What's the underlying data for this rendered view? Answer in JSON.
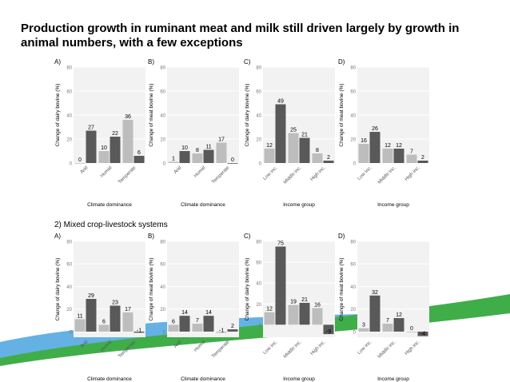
{
  "slide": {
    "title": "Production growth in ruminant meat and milk still driven largely by growth in animal numbers, with a few exceptions",
    "section_label": "2) Mixed crop-livestock systems"
  },
  "colors": {
    "light_bar": "#bdbdbd",
    "dark_bar": "#595959",
    "panel_bg": "#f2f2f2",
    "grid": "#ffffff",
    "deco_blue": "#4aa3df",
    "deco_green": "#3fae49"
  },
  "chart_data": [
    {
      "type": "bar",
      "panel": "A)",
      "row": 1,
      "ylabel": "Change of dairy bovine (%)",
      "xlabel": "Climate dominance",
      "ylim": [
        0,
        80
      ],
      "yticks": [
        0,
        20,
        40,
        60,
        80
      ],
      "categories": [
        "Arid",
        "Humid",
        "Temperate"
      ],
      "series": [
        {
          "values": [
            0,
            10,
            36
          ]
        },
        {
          "values": [
            27,
            22,
            6
          ]
        }
      ]
    },
    {
      "type": "bar",
      "panel": "B)",
      "row": 1,
      "ylabel": "Change of meat bovine (%)",
      "xlabel": "Climate dominance",
      "ylim": [
        0,
        80
      ],
      "yticks": [
        0,
        20,
        40,
        60,
        80
      ],
      "categories": [
        "Arid",
        "Humid",
        "Temperate"
      ],
      "series": [
        {
          "values": [
            1,
            8,
            17
          ]
        },
        {
          "values": [
            10,
            11,
            0
          ]
        }
      ]
    },
    {
      "type": "bar",
      "panel": "C)",
      "row": 1,
      "ylabel": "Change of dairy bovine (%)",
      "xlabel": "Income group",
      "ylim": [
        0,
        80
      ],
      "yticks": [
        0,
        20,
        40,
        60,
        80
      ],
      "categories": [
        "Low inc.",
        "Middle inc.",
        "High inc."
      ],
      "series": [
        {
          "values": [
            12,
            25,
            8
          ]
        },
        {
          "values": [
            49,
            21,
            2
          ]
        }
      ]
    },
    {
      "type": "bar",
      "panel": "D)",
      "row": 1,
      "ylabel": "Change of meat bovine (%)",
      "xlabel": "Income group",
      "ylim": [
        0,
        80
      ],
      "yticks": [
        0,
        20,
        40,
        60,
        80
      ],
      "categories": [
        "Low inc.",
        "Middle inc.",
        "High inc."
      ],
      "series": [
        {
          "values": [
            16,
            12,
            7
          ]
        },
        {
          "values": [
            26,
            12,
            2
          ]
        }
      ]
    },
    {
      "type": "bar",
      "panel": "A)",
      "row": 2,
      "ylabel": "Change of dairy bovine (%)",
      "xlabel": "Climate dominance",
      "ylim": [
        -5,
        80
      ],
      "yticks": [
        0,
        20,
        40,
        60,
        80
      ],
      "categories": [
        "Arid",
        "Humid",
        "Temperate"
      ],
      "series": [
        {
          "values": [
            11,
            6,
            17
          ]
        },
        {
          "values": [
            29,
            23,
            -1
          ]
        }
      ]
    },
    {
      "type": "bar",
      "panel": "B)",
      "row": 2,
      "ylabel": "Change of meat bovine (%)",
      "xlabel": "Climate dominance",
      "ylim": [
        -5,
        80
      ],
      "yticks": [
        0,
        20,
        40,
        60,
        80
      ],
      "categories": [
        "Arid",
        "Humid",
        "Temperate"
      ],
      "series": [
        {
          "values": [
            6,
            7,
            -1
          ]
        },
        {
          "values": [
            14,
            14,
            2
          ]
        }
      ]
    },
    {
      "type": "bar",
      "panel": "C)",
      "row": 2,
      "ylabel": "Change of dairy bovine (%)",
      "xlabel": "Income group",
      "ylim": [
        -12,
        80
      ],
      "yticks": [
        0,
        20,
        40,
        60,
        80
      ],
      "categories": [
        "Low inc.",
        "Middle inc.",
        "High inc."
      ],
      "series": [
        {
          "values": [
            12,
            19,
            16
          ]
        },
        {
          "values": [
            75,
            21,
            -9
          ]
        }
      ]
    },
    {
      "type": "bar",
      "panel": "D)",
      "row": 2,
      "ylabel": "Change of meat bovine (%)",
      "xlabel": "Income group",
      "ylim": [
        -5,
        80
      ],
      "yticks": [
        0,
        20,
        40,
        60,
        80
      ],
      "categories": [
        "Low inc.",
        "Middle inc.",
        "High inc."
      ],
      "series": [
        {
          "values": [
            3,
            7,
            0
          ]
        },
        {
          "values": [
            32,
            12,
            -4
          ]
        }
      ]
    }
  ]
}
